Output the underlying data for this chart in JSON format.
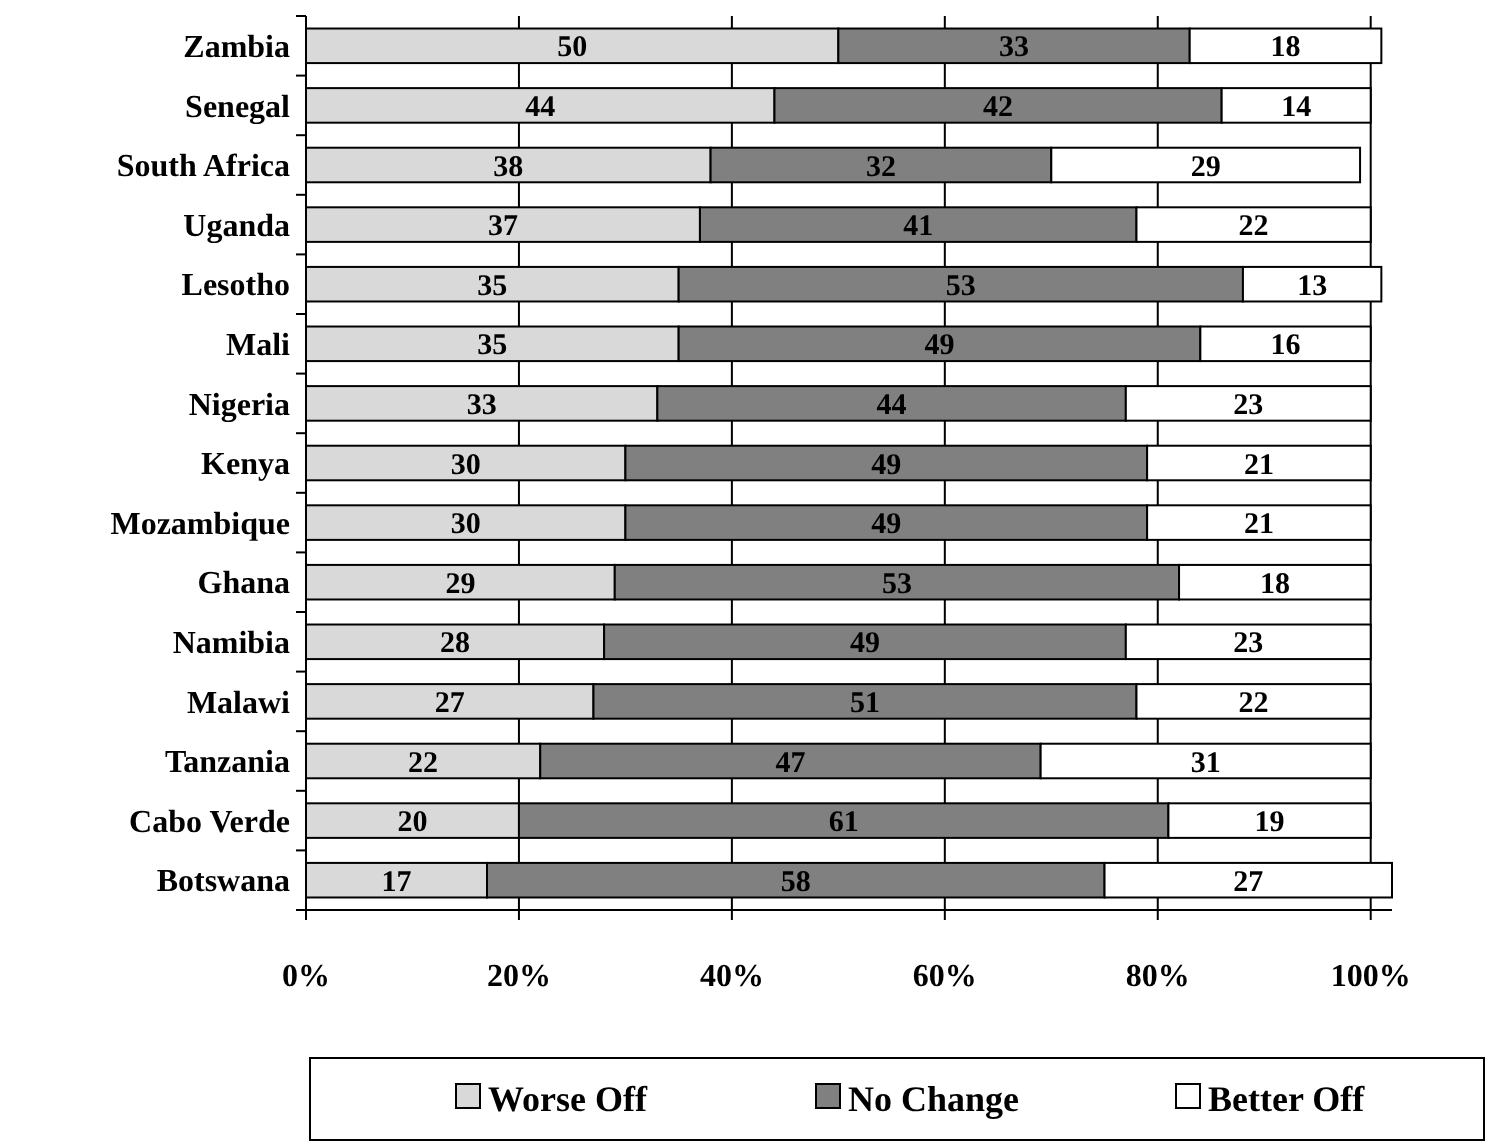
{
  "chart_data": {
    "type": "bar",
    "orientation": "horizontal",
    "stacked": true,
    "data_labels": true,
    "grid": "x",
    "legend": "bottom",
    "categories": [
      "Zambia",
      "Senegal",
      "South Africa",
      "Uganda",
      "Lesotho",
      "Mali",
      "Nigeria",
      "Kenya",
      "Mozambique",
      "Ghana",
      "Namibia",
      "Malawi",
      "Tanzania",
      "Cabo Verde",
      "Botswana"
    ],
    "series": [
      {
        "name": "Worse Off",
        "color": "#d9d9d9",
        "values": [
          50,
          44,
          38,
          37,
          35,
          35,
          33,
          30,
          30,
          29,
          28,
          27,
          22,
          20,
          17
        ]
      },
      {
        "name": "No Change",
        "color": "#808080",
        "values": [
          33,
          42,
          32,
          41,
          53,
          49,
          44,
          49,
          49,
          53,
          49,
          51,
          47,
          61,
          58
        ]
      },
      {
        "name": "Better Off",
        "color": "#ffffff",
        "values": [
          18,
          14,
          29,
          22,
          13,
          16,
          23,
          21,
          21,
          18,
          23,
          22,
          31,
          19,
          27
        ]
      }
    ],
    "xlim": [
      0,
      102
    ],
    "xticks": [
      {
        "value": 0,
        "label": "0%"
      },
      {
        "value": 20,
        "label": "20%"
      },
      {
        "value": 40,
        "label": "40%"
      },
      {
        "value": 60,
        "label": "60%"
      },
      {
        "value": 80,
        "label": "80%"
      },
      {
        "value": 100,
        "label": "100%"
      }
    ]
  }
}
